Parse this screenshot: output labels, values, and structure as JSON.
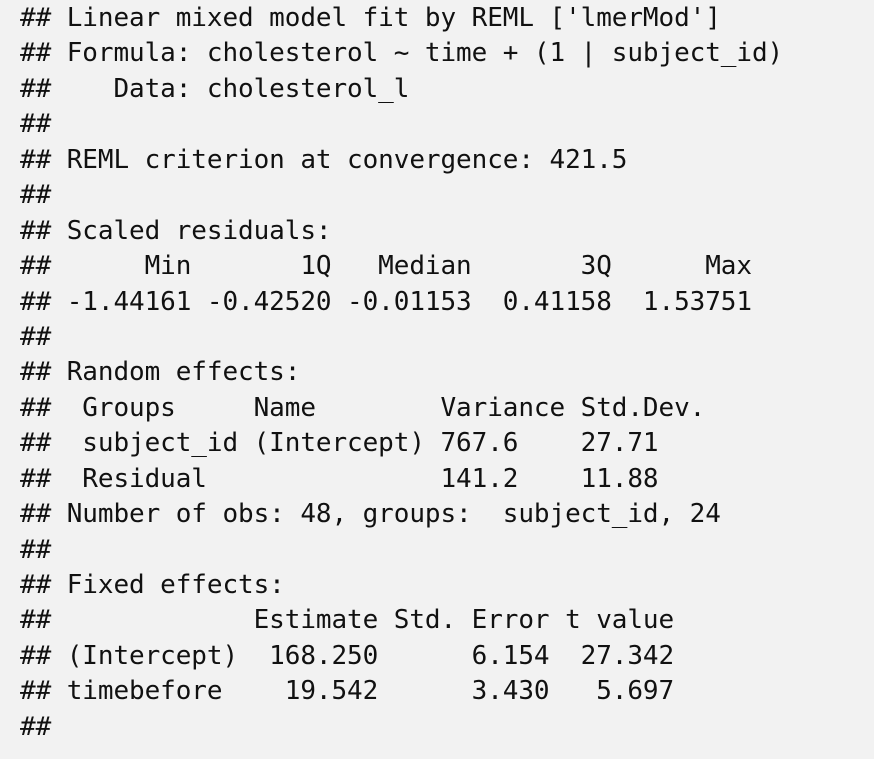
{
  "output": {
    "lines": [
      "## Linear mixed model fit by REML ['lmerMod']",
      "## Formula: cholesterol ~ time + (1 | subject_id)",
      "##    Data: cholesterol_l",
      "##",
      "## REML criterion at convergence: 421.5",
      "##",
      "## Scaled residuals:",
      "##      Min       1Q   Median       3Q      Max",
      "## -1.44161 -0.42520 -0.01153  0.41158  1.53751",
      "##",
      "## Random effects:",
      "##  Groups     Name        Variance Std.Dev.",
      "##  subject_id (Intercept) 767.6    27.71",
      "##  Residual               141.2    11.88",
      "## Number of obs: 48, groups:  subject_id, 24",
      "##",
      "## Fixed effects:",
      "##             Estimate Std. Error t value",
      "## (Intercept)  168.250      6.154  27.342",
      "## timebefore    19.542      3.430   5.697",
      "##"
    ]
  }
}
